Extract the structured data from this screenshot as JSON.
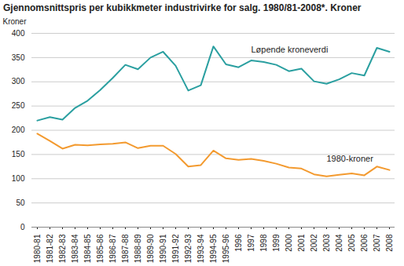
{
  "chart_data": {
    "type": "line",
    "title": "Gjennomsnittspris per kubikkmeter industrivirke for salg. 1980/81-2008*. Kroner",
    "y_label": "Kroner",
    "categories": [
      "1980-81",
      "1981-82",
      "1982-83",
      "1983-84",
      "1984-85",
      "1985-86",
      "1986-87",
      "1987-88",
      "1988-89",
      "1989-90",
      "1990-91",
      "1991-92",
      "1992-93",
      "1993-94",
      "1994-95",
      "1995-96",
      "1996",
      "1997",
      "1998",
      "1999",
      "2000",
      "2001",
      "2002",
      "2003",
      "2004",
      "2005",
      "2006",
      "2007",
      "2008"
    ],
    "series": [
      {
        "name": "Løpende kroneverdi",
        "color": "#2a9fa0",
        "values": [
          220,
          227,
          222,
          246,
          261,
          283,
          308,
          335,
          326,
          350,
          362,
          333,
          282,
          293,
          373,
          336,
          330,
          344,
          341,
          335,
          322,
          327,
          301,
          296,
          305,
          318,
          313,
          370,
          362
        ]
      },
      {
        "name": "1980-kroner",
        "color": "#f39a2f",
        "values": [
          193,
          178,
          162,
          170,
          169,
          171,
          172,
          175,
          163,
          168,
          168,
          151,
          125,
          128,
          158,
          142,
          139,
          141,
          137,
          131,
          123,
          121,
          109,
          105,
          108,
          111,
          107,
          125,
          118
        ]
      }
    ],
    "ylim": [
      0,
      400
    ],
    "yticks": [
      0,
      50,
      100,
      150,
      200,
      250,
      300,
      350,
      400
    ],
    "grid": true
  }
}
